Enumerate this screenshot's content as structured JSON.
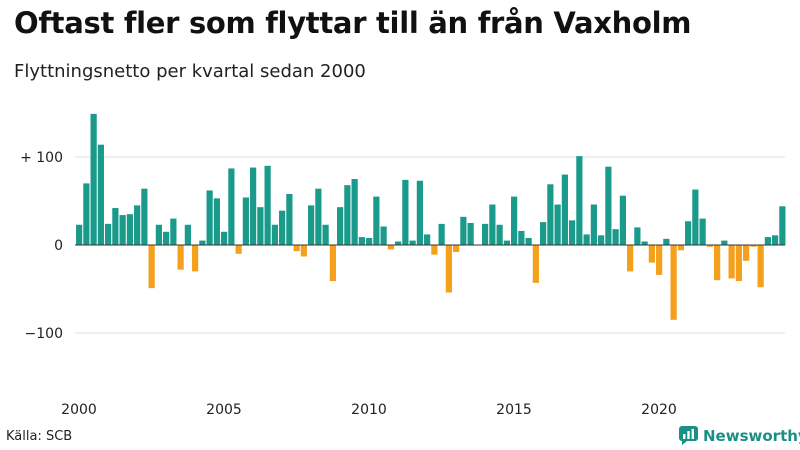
{
  "chart_data": {
    "type": "bar",
    "title": "Oftast fler som flyttar till än från Vaxholm",
    "subtitle": "Flyttningsnetto per kvartal sedan 2000",
    "xlabel": "",
    "ylabel": "",
    "ylim": [
      -160,
      160
    ],
    "y_ticks": [
      {
        "value": 100,
        "label": "+ 100"
      },
      {
        "value": 0,
        "label": "0"
      },
      {
        "value": -100,
        "label": "−100"
      }
    ],
    "x_ticks": [
      {
        "year": 2000,
        "label": "2000"
      },
      {
        "year": 2005,
        "label": "2005"
      },
      {
        "year": 2010,
        "label": "2010"
      },
      {
        "year": 2015,
        "label": "2015"
      },
      {
        "year": 2020,
        "label": "2020"
      }
    ],
    "start_year": 2000,
    "grid": true,
    "colors": {
      "positive": "#1a9a8a",
      "negative": "#f5a01d",
      "grid": "#dddddd",
      "axis": "#333333"
    },
    "values": [
      23,
      70,
      149,
      114,
      24,
      42,
      34,
      35,
      45,
      64,
      -49,
      23,
      15,
      30,
      -28,
      23,
      -30,
      5,
      62,
      53,
      15,
      87,
      -10,
      54,
      88,
      43,
      90,
      23,
      39,
      58,
      -7,
      -13,
      45,
      64,
      23,
      -41,
      43,
      68,
      75,
      9,
      8,
      55,
      21,
      -5,
      4,
      74,
      5,
      73,
      12,
      -11,
      24,
      -54,
      -8,
      32,
      25,
      0,
      24,
      46,
      23,
      5,
      55,
      16,
      8,
      -43,
      26,
      69,
      46,
      80,
      28,
      101,
      12,
      46,
      11,
      89,
      18,
      56,
      -30,
      20,
      4,
      -20,
      -34,
      7,
      -85,
      -6,
      27,
      63,
      30,
      -2,
      -40,
      5,
      -38,
      -41,
      -18,
      -2,
      -48,
      9,
      11,
      44
    ]
  },
  "footer": {
    "source": "Källa: SCB",
    "brand": "Newsworthy"
  }
}
